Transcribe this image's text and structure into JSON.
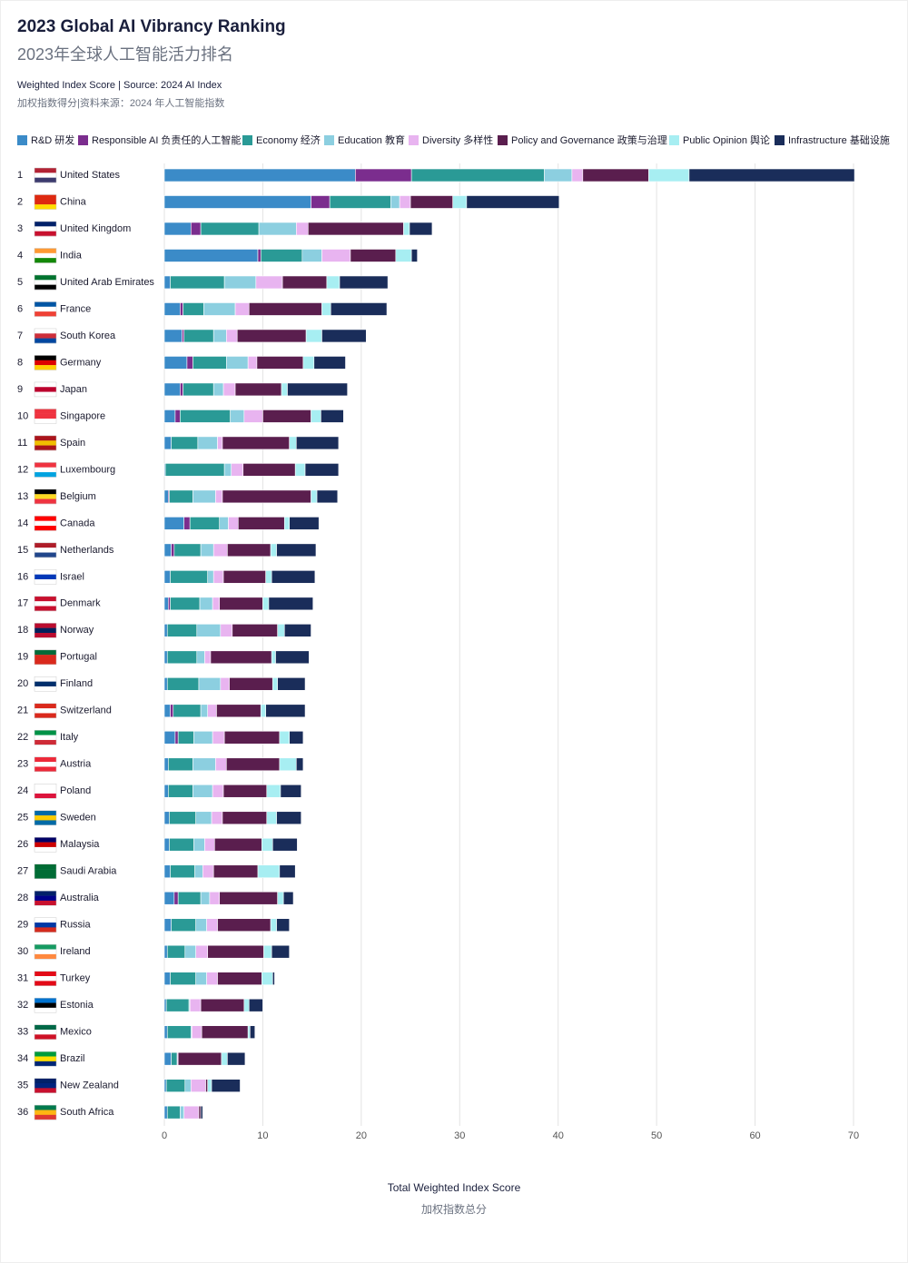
{
  "chart_data": {
    "type": "stacked-bar-horizontal",
    "title": "2023 Global AI Vibrancy Ranking",
    "subtitle": "2023年全球人工智能活力排名",
    "note": "Weighted Index Score | Source: 2024 AI Index",
    "note_cn": "加权指数得分|资料来源：2024 年人工智能指数",
    "x_label": "Total Weighted Index Score",
    "x_label_cn": "加权指数总分",
    "ranks": [
      1,
      2,
      3,
      4,
      5,
      6,
      7,
      8,
      9,
      10,
      11,
      12,
      13,
      14,
      15,
      16,
      17,
      18,
      19,
      20,
      21,
      22,
      23,
      24,
      25,
      26,
      27,
      28,
      29,
      30,
      31,
      32,
      33,
      34,
      35,
      36
    ],
    "categories": [
      "United States",
      "China",
      "United Kingdom",
      "India",
      "United Arab Emirates",
      "France",
      "South Korea",
      "Germany",
      "Japan",
      "Singapore",
      "Spain",
      "Luxembourg",
      "Belgium",
      "Canada",
      "Netherlands",
      "Israel",
      "Denmark",
      "Norway",
      "Portugal",
      "Finland",
      "Switzerland",
      "Italy",
      "Austria",
      "Poland",
      "Sweden",
      "Malaysia",
      "Saudi Arabia",
      "Australia",
      "Russia",
      "Ireland",
      "Turkey",
      "Estonia",
      "Mexico",
      "Brazil",
      "New Zealand",
      "South Africa"
    ],
    "xlim": [
      0,
      70
    ],
    "xticks": [
      0,
      10,
      20,
      30,
      40,
      50,
      60,
      70
    ],
    "grid": true,
    "series": [
      {
        "name": "R&D 研发",
        "color": "#3b8bc8",
        "values": [
          19.4,
          14.9,
          2.7,
          9.5,
          0.6,
          1.6,
          1.8,
          2.3,
          1.6,
          1.1,
          0.7,
          0.1,
          0.4,
          2.0,
          0.7,
          0.6,
          0.4,
          0.3,
          0.3,
          0.3,
          0.6,
          1.1,
          0.4,
          0.4,
          0.5,
          0.5,
          0.6,
          1.0,
          0.7,
          0.3,
          0.6,
          0.2,
          0.3,
          0.7,
          0.2,
          0.3
        ]
      },
      {
        "name": "Responsible AI 负责任的人工智能",
        "color": "#7b2d8e",
        "values": [
          5.7,
          1.9,
          1.0,
          0.3,
          0,
          0.3,
          0.2,
          0.6,
          0.3,
          0.5,
          0,
          0,
          0.1,
          0.6,
          0.3,
          0,
          0.2,
          0,
          0,
          0,
          0.3,
          0.3,
          0,
          0,
          0,
          0,
          0,
          0.4,
          0,
          0,
          0,
          0,
          0,
          0,
          0,
          0
        ]
      },
      {
        "name": "Economy 经济",
        "color": "#2a9a96",
        "values": [
          13.5,
          6.2,
          5.9,
          4.2,
          5.5,
          2.1,
          3.0,
          3.4,
          3.1,
          5.1,
          2.7,
          6.0,
          2.4,
          3.0,
          2.7,
          3.8,
          3.0,
          3.0,
          3.0,
          3.2,
          2.8,
          1.6,
          2.5,
          2.5,
          2.7,
          2.5,
          2.5,
          2.3,
          2.5,
          1.8,
          2.6,
          2.3,
          2.4,
          0.6,
          1.9,
          1.3
        ]
      },
      {
        "name": "Education 教育",
        "color": "#8ccfe0",
        "values": [
          2.8,
          0.9,
          3.8,
          2.0,
          3.2,
          3.2,
          1.3,
          2.2,
          1.0,
          1.4,
          2.0,
          0.7,
          2.3,
          0.9,
          1.3,
          0.6,
          1.3,
          2.4,
          0.8,
          2.2,
          0.7,
          1.9,
          2.3,
          2.0,
          1.6,
          1.1,
          0.8,
          0.9,
          1.1,
          1.1,
          1.1,
          0.1,
          0.1,
          0,
          0.6,
          0.4
        ]
      },
      {
        "name": "Diversity 多样性",
        "color": "#e8b4f0",
        "values": [
          1.1,
          1.1,
          1.2,
          2.9,
          2.7,
          1.4,
          1.1,
          0.9,
          1.2,
          1.9,
          0.5,
          1.2,
          0.7,
          1.0,
          1.4,
          1.0,
          0.7,
          1.2,
          0.6,
          0.9,
          0.9,
          1.2,
          1.1,
          1.1,
          1.1,
          1.0,
          1.1,
          1.0,
          1.1,
          1.2,
          1.1,
          1.1,
          1.0,
          0.1,
          1.5,
          1.5
        ]
      },
      {
        "name": "Policy and Governance 政策与治理",
        "color": "#5a1e4e",
        "values": [
          6.7,
          4.3,
          9.7,
          4.6,
          4.5,
          7.4,
          7.0,
          4.7,
          4.7,
          4.9,
          6.8,
          5.3,
          9.0,
          4.7,
          4.4,
          4.3,
          4.4,
          4.6,
          6.2,
          4.4,
          4.5,
          5.6,
          5.4,
          4.4,
          4.5,
          4.8,
          4.5,
          5.9,
          5.4,
          5.7,
          4.5,
          4.4,
          4.7,
          4.4,
          0.2,
          0.2
        ]
      },
      {
        "name": "Public Opinion 舆论",
        "color": "#a7eef2",
        "values": [
          4.1,
          1.4,
          0.6,
          1.6,
          1.3,
          0.9,
          1.6,
          1.1,
          0.6,
          1.0,
          0.7,
          1.0,
          0.6,
          0.5,
          0.6,
          0.6,
          0.6,
          0.7,
          0.4,
          0.5,
          0.5,
          1.0,
          1.7,
          1.4,
          1.0,
          1.1,
          2.2,
          0.6,
          0.6,
          0.8,
          1.1,
          0.5,
          0.2,
          0.6,
          0.4,
          0
        ]
      },
      {
        "name": "Infrastructure 基础设施",
        "color": "#1a2d5a",
        "values": [
          16.8,
          9.4,
          2.3,
          0.6,
          4.9,
          5.7,
          4.5,
          3.2,
          6.1,
          2.3,
          4.3,
          3.4,
          2.1,
          3.0,
          4.0,
          4.4,
          4.5,
          2.7,
          3.4,
          2.8,
          4.0,
          1.4,
          0.7,
          2.1,
          2.5,
          2.5,
          1.6,
          1.0,
          1.3,
          1.8,
          0.2,
          1.4,
          0.5,
          1.8,
          2.9,
          0.2
        ]
      }
    ]
  }
}
